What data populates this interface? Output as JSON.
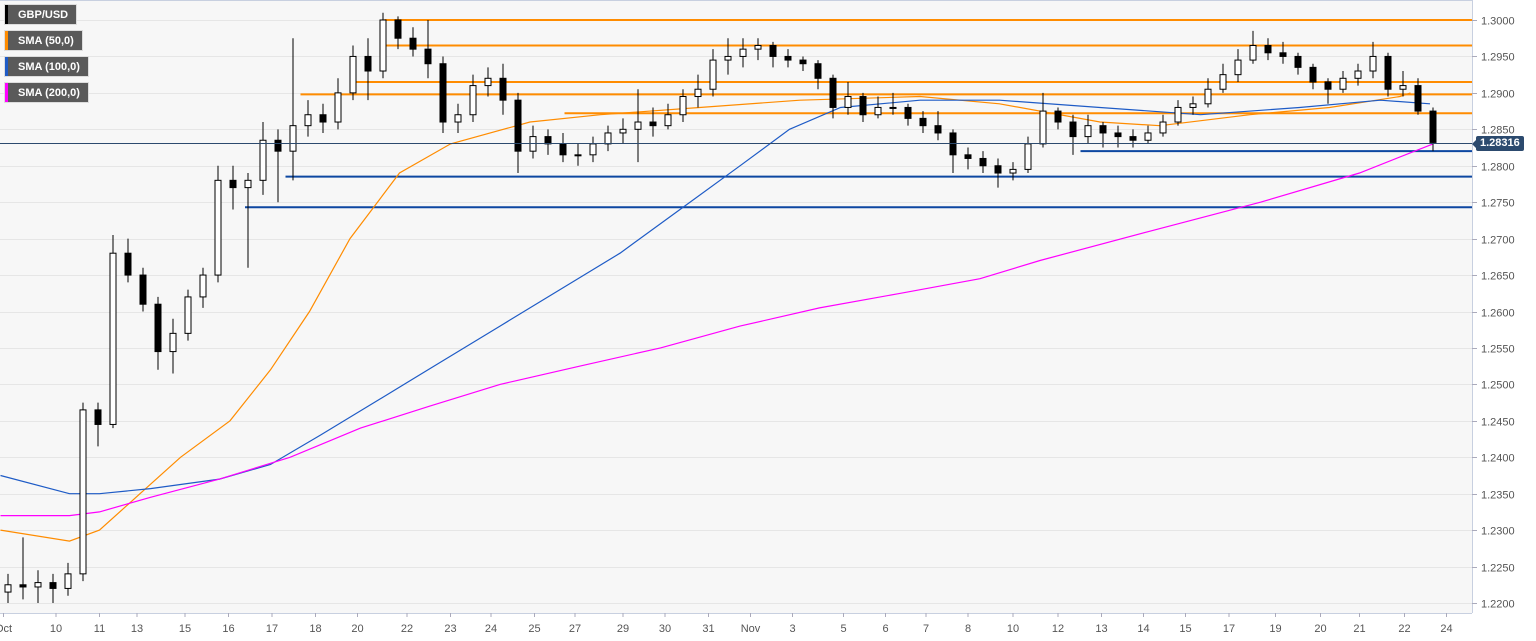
{
  "legend": [
    {
      "label": "GBP/USD",
      "color": "#000000"
    },
    {
      "label": "SMA (50,0)",
      "color": "#ff8c00"
    },
    {
      "label": "SMA (100,0)",
      "color": "#1e5bc6"
    },
    {
      "label": "SMA (200,0)",
      "color": "#ff00ff"
    }
  ],
  "last_price_label": "1.28316",
  "chart_data": {
    "type": "candlestick",
    "ylim": [
      1.219,
      1.3025
    ],
    "grid": true,
    "legend_placement": "top-left",
    "y_ticks": [
      "1.3000",
      "1.2950",
      "1.2900",
      "1.2850",
      "1.2800",
      "1.2750",
      "1.2700",
      "1.2650",
      "1.2600",
      "1.2550",
      "1.2500",
      "1.2450",
      "1.2400",
      "1.2350",
      "1.2300",
      "1.2250",
      "1.2200"
    ],
    "x_ticks": [
      {
        "label": "Oct",
        "at": -0.3
      },
      {
        "label": "10",
        "at": 3.2
      },
      {
        "label": "11",
        "at": 6.1
      },
      {
        "label": "13",
        "at": 8.6
      },
      {
        "label": "15",
        "at": 11.8
      },
      {
        "label": "16",
        "at": 14.7
      },
      {
        "label": "17",
        "at": 17.6
      },
      {
        "label": "18",
        "at": 20.5
      },
      {
        "label": "20",
        "at": 23.3
      },
      {
        "label": "22",
        "at": 26.6
      },
      {
        "label": "23",
        "at": 29.5
      },
      {
        "label": "24",
        "at": 32.2
      },
      {
        "label": "25",
        "at": 35.1
      },
      {
        "label": "27",
        "at": 37.8
      },
      {
        "label": "29",
        "at": 41
      },
      {
        "label": "30",
        "at": 43.8
      },
      {
        "label": "31",
        "at": 46.7
      },
      {
        "label": "Nov",
        "at": 49.5
      },
      {
        "label": "3",
        "at": 52.3
      },
      {
        "label": "5",
        "at": 55.7
      },
      {
        "label": "6",
        "at": 58.5
      },
      {
        "label": "7",
        "at": 61.2
      },
      {
        "label": "8",
        "at": 64
      },
      {
        "label": "10",
        "at": 67
      },
      {
        "label": "12",
        "at": 70
      },
      {
        "label": "13",
        "at": 72.9
      },
      {
        "label": "14",
        "at": 75.7
      },
      {
        "label": "15",
        "at": 78.5
      },
      {
        "label": "17",
        "at": 81.4
      },
      {
        "label": "19",
        "at": 84.5
      },
      {
        "label": "20",
        "at": 87.5
      },
      {
        "label": "21",
        "at": 90.1
      },
      {
        "label": "22",
        "at": 93.1
      },
      {
        "label": "24",
        "at": 95.9
      }
    ],
    "candles": [
      [
        1.2215,
        1.224,
        1.22,
        1.2225
      ],
      [
        1.2225,
        1.229,
        1.2205,
        1.2222
      ],
      [
        1.2222,
        1.2245,
        1.22,
        1.2228
      ],
      [
        1.2228,
        1.224,
        1.22,
        1.222
      ],
      [
        1.222,
        1.2255,
        1.221,
        1.224
      ],
      [
        1.224,
        1.2475,
        1.223,
        1.2465
      ],
      [
        1.2465,
        1.2475,
        1.2415,
        1.2445
      ],
      [
        1.2445,
        1.2705,
        1.244,
        1.268
      ],
      [
        1.268,
        1.27,
        1.264,
        1.265
      ],
      [
        1.265,
        1.266,
        1.26,
        1.261
      ],
      [
        1.261,
        1.262,
        1.252,
        1.2545
      ],
      [
        1.2545,
        1.259,
        1.2515,
        1.257
      ],
      [
        1.257,
        1.263,
        1.256,
        1.262
      ],
      [
        1.262,
        1.266,
        1.2605,
        1.265
      ],
      [
        1.265,
        1.28,
        1.264,
        1.278
      ],
      [
        1.278,
        1.28,
        1.274,
        1.277
      ],
      [
        1.277,
        1.279,
        1.266,
        1.278
      ],
      [
        1.278,
        1.286,
        1.276,
        1.2835
      ],
      [
        1.2835,
        1.285,
        1.275,
        1.282
      ],
      [
        1.282,
        1.2975,
        1.278,
        1.2855
      ],
      [
        1.2855,
        1.289,
        1.284,
        1.287
      ],
      [
        1.287,
        1.2885,
        1.2845,
        1.286
      ],
      [
        1.286,
        1.292,
        1.285,
        1.29
      ],
      [
        1.29,
        1.2965,
        1.289,
        1.295
      ],
      [
        1.295,
        1.2975,
        1.289,
        1.293
      ],
      [
        1.293,
        1.301,
        1.292,
        1.3
      ],
      [
        1.3,
        1.3005,
        1.296,
        1.2975
      ],
      [
        1.2975,
        1.299,
        1.295,
        1.296
      ],
      [
        1.296,
        1.3,
        1.292,
        1.294
      ],
      [
        1.294,
        1.295,
        1.2845,
        1.286
      ],
      [
        1.286,
        1.2885,
        1.2845,
        1.287
      ],
      [
        1.287,
        1.2925,
        1.286,
        1.291
      ],
      [
        1.291,
        1.2935,
        1.2895,
        1.292
      ],
      [
        1.292,
        1.294,
        1.287,
        1.289
      ],
      [
        1.289,
        1.29,
        1.279,
        1.282
      ],
      [
        1.282,
        1.2855,
        1.281,
        1.284
      ],
      [
        1.284,
        1.285,
        1.2815,
        1.283
      ],
      [
        1.283,
        1.2845,
        1.2805,
        1.2815
      ],
      [
        1.2815,
        1.283,
        1.28,
        1.2815
      ],
      [
        1.2815,
        1.284,
        1.2805,
        1.283
      ],
      [
        1.283,
        1.2855,
        1.282,
        1.2845
      ],
      [
        1.2845,
        1.2865,
        1.283,
        1.285
      ],
      [
        1.285,
        1.2905,
        1.2805,
        1.286
      ],
      [
        1.286,
        1.288,
        1.284,
        1.2855
      ],
      [
        1.2855,
        1.2885,
        1.285,
        1.287
      ],
      [
        1.287,
        1.2905,
        1.286,
        1.2895
      ],
      [
        1.2895,
        1.2925,
        1.288,
        1.2905
      ],
      [
        1.2905,
        1.296,
        1.2895,
        1.2945
      ],
      [
        1.2945,
        1.2975,
        1.2925,
        1.295
      ],
      [
        1.295,
        1.2975,
        1.2935,
        1.296
      ],
      [
        1.296,
        1.2975,
        1.2945,
        1.2965
      ],
      [
        1.2965,
        1.297,
        1.2935,
        1.295
      ],
      [
        1.295,
        1.296,
        1.2935,
        1.2945
      ],
      [
        1.2945,
        1.295,
        1.293,
        1.294
      ],
      [
        1.294,
        1.2945,
        1.2905,
        1.292
      ],
      [
        1.292,
        1.2925,
        1.2865,
        1.288
      ],
      [
        1.288,
        1.2915,
        1.287,
        1.2895
      ],
      [
        1.2895,
        1.29,
        1.286,
        1.287
      ],
      [
        1.287,
        1.2895,
        1.2865,
        1.288
      ],
      [
        1.288,
        1.29,
        1.287,
        1.288
      ],
      [
        1.288,
        1.2885,
        1.2855,
        1.2865
      ],
      [
        1.2865,
        1.2875,
        1.2845,
        1.2855
      ],
      [
        1.2855,
        1.2875,
        1.2835,
        1.2845
      ],
      [
        1.2845,
        1.285,
        1.279,
        1.2815
      ],
      [
        1.2815,
        1.2825,
        1.2795,
        1.281
      ],
      [
        1.281,
        1.282,
        1.279,
        1.28
      ],
      [
        1.28,
        1.281,
        1.277,
        1.279
      ],
      [
        1.279,
        1.2805,
        1.278,
        1.2795
      ],
      [
        1.2795,
        1.284,
        1.279,
        1.283
      ],
      [
        1.283,
        1.29,
        1.2825,
        1.2875
      ],
      [
        1.2875,
        1.288,
        1.285,
        1.286
      ],
      [
        1.286,
        1.287,
        1.2815,
        1.284
      ],
      [
        1.284,
        1.287,
        1.283,
        1.2855
      ],
      [
        1.2855,
        1.286,
        1.2825,
        1.2845
      ],
      [
        1.2845,
        1.2855,
        1.2825,
        1.284
      ],
      [
        1.284,
        1.285,
        1.2825,
        1.2835
      ],
      [
        1.2835,
        1.2855,
        1.283,
        1.2845
      ],
      [
        1.2845,
        1.287,
        1.284,
        1.286
      ],
      [
        1.286,
        1.289,
        1.2855,
        1.288
      ],
      [
        1.288,
        1.2895,
        1.287,
        1.2885
      ],
      [
        1.2885,
        1.292,
        1.288,
        1.2905
      ],
      [
        1.2905,
        1.294,
        1.29,
        1.2925
      ],
      [
        1.2925,
        1.296,
        1.2915,
        1.2945
      ],
      [
        1.2945,
        1.2985,
        1.294,
        1.2965
      ],
      [
        1.2965,
        1.2975,
        1.2945,
        1.2955
      ],
      [
        1.2955,
        1.297,
        1.294,
        1.295
      ],
      [
        1.295,
        1.2955,
        1.2925,
        1.2935
      ],
      [
        1.2935,
        1.294,
        1.2905,
        1.2915
      ],
      [
        1.2915,
        1.292,
        1.2885,
        1.2905
      ],
      [
        1.2905,
        1.293,
        1.29,
        1.292
      ],
      [
        1.292,
        1.294,
        1.291,
        1.293
      ],
      [
        1.293,
        1.297,
        1.292,
        1.295
      ],
      [
        1.295,
        1.2955,
        1.2895,
        1.2905
      ],
      [
        1.2905,
        1.293,
        1.2895,
        1.291
      ],
      [
        1.291,
        1.292,
        1.287,
        1.2875
      ],
      [
        1.2875,
        1.288,
        1.282,
        1.2832
      ]
    ],
    "sma": [
      {
        "color": "#ff8c00",
        "points": [
          [
            -0.5,
            1.23
          ],
          [
            4.1,
            1.2285
          ],
          [
            6.1,
            1.23
          ],
          [
            8.8,
            1.235
          ],
          [
            11.5,
            1.24
          ],
          [
            14.8,
            1.245
          ],
          [
            17.5,
            1.252
          ],
          [
            20.1,
            1.26
          ],
          [
            22.8,
            1.27
          ],
          [
            26.1,
            1.279
          ],
          [
            29.5,
            1.283
          ],
          [
            34.8,
            1.286
          ],
          [
            39.5,
            1.287
          ],
          [
            46.1,
            1.288
          ],
          [
            52.8,
            1.289
          ],
          [
            60.8,
            1.2895
          ],
          [
            66.1,
            1.2885
          ],
          [
            72.8,
            1.286
          ],
          [
            76.8,
            1.2855
          ],
          [
            82.8,
            1.287
          ],
          [
            88.1,
            1.288
          ],
          [
            92.8,
            1.2895
          ],
          [
            93.5,
            1.29
          ]
        ]
      },
      {
        "color": "#1e5bc6",
        "points": [
          [
            -0.5,
            1.2375
          ],
          [
            4.1,
            1.235
          ],
          [
            6.1,
            1.235
          ],
          [
            9.5,
            1.2357
          ],
          [
            14.1,
            1.237
          ],
          [
            17.5,
            1.239
          ],
          [
            20.8,
            1.243
          ],
          [
            24.8,
            1.248
          ],
          [
            28.8,
            1.253
          ],
          [
            32.8,
            1.258
          ],
          [
            36.8,
            1.263
          ],
          [
            40.8,
            1.268
          ],
          [
            44.8,
            1.274
          ],
          [
            48.8,
            1.28
          ],
          [
            52.1,
            1.285
          ],
          [
            55.5,
            1.288
          ],
          [
            60.8,
            1.289
          ],
          [
            66.1,
            1.289
          ],
          [
            72.8,
            1.288
          ],
          [
            79.5,
            1.287
          ],
          [
            86.1,
            1.288
          ],
          [
            91.5,
            1.289
          ],
          [
            94.8,
            1.2885
          ]
        ]
      },
      {
        "color": "#ff00ff",
        "points": [
          [
            -0.5,
            1.232
          ],
          [
            4.1,
            1.232
          ],
          [
            6.1,
            1.2325
          ],
          [
            9.5,
            1.2345
          ],
          [
            14.1,
            1.237
          ],
          [
            18.8,
            1.24
          ],
          [
            23.5,
            1.244
          ],
          [
            28.1,
            1.247
          ],
          [
            32.8,
            1.25
          ],
          [
            38.1,
            1.2525
          ],
          [
            43.5,
            1.255
          ],
          [
            48.8,
            1.258
          ],
          [
            54.1,
            1.2605
          ],
          [
            59.5,
            1.2625
          ],
          [
            64.8,
            1.2645
          ],
          [
            68.8,
            1.267
          ],
          [
            76.1,
            1.271
          ],
          [
            83.5,
            1.275
          ],
          [
            90.1,
            1.279
          ],
          [
            95.0,
            1.283
          ]
        ]
      }
    ],
    "levels": [
      {
        "price": 1.3,
        "from": 25.1,
        "color": "#ff8c00"
      },
      {
        "price": 1.2965,
        "from": 25.1,
        "color": "#ff8c00"
      },
      {
        "price": 1.2915,
        "from": 22.8,
        "color": "#ff8c00"
      },
      {
        "price": 1.2898,
        "from": 19.5,
        "color": "#ff8c00"
      },
      {
        "price": 1.2872,
        "from": 37.1,
        "color": "#ff8c00"
      },
      {
        "price": 1.282,
        "from": 71.5,
        "color": "#0d47a1"
      },
      {
        "price": 1.2785,
        "from": 18.5,
        "color": "#0d47a1"
      },
      {
        "price": 1.2743,
        "from": 15.8,
        "color": "#0d47a1"
      }
    ],
    "last_price": 1.28316
  }
}
